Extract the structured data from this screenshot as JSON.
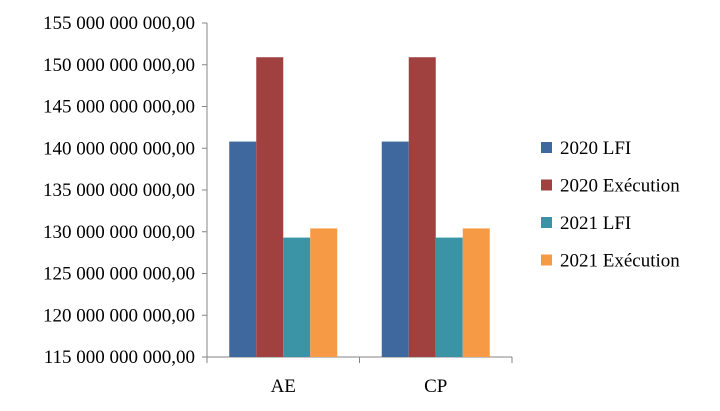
{
  "chart_data": {
    "type": "bar",
    "categories": [
      "AE",
      "CP"
    ],
    "series": [
      {
        "name": "2020 LFI",
        "color": "#3F689E",
        "values": [
          140800000000,
          140800000000
        ]
      },
      {
        "name": "2020 Exécution",
        "color": "#A04140",
        "values": [
          150900000000,
          150900000000
        ]
      },
      {
        "name": "2021 LFI",
        "color": "#3A94A6",
        "values": [
          129300000000,
          129300000000
        ]
      },
      {
        "name": "2021 Exécution",
        "color": "#F79A46",
        "values": [
          130400000000,
          130400000000
        ]
      }
    ],
    "ylim": [
      115000000000,
      155000000000
    ],
    "yticks": [
      "115 000 000 000,00",
      "120 000 000 000,00",
      "125 000 000 000,00",
      "130 000 000 000,00",
      "135 000 000 000,00",
      "140 000 000 000,00",
      "145 000 000 000,00",
      "150 000 000 000,00",
      "155 000 000 000,00"
    ],
    "grid": false,
    "legend_position": "right"
  }
}
